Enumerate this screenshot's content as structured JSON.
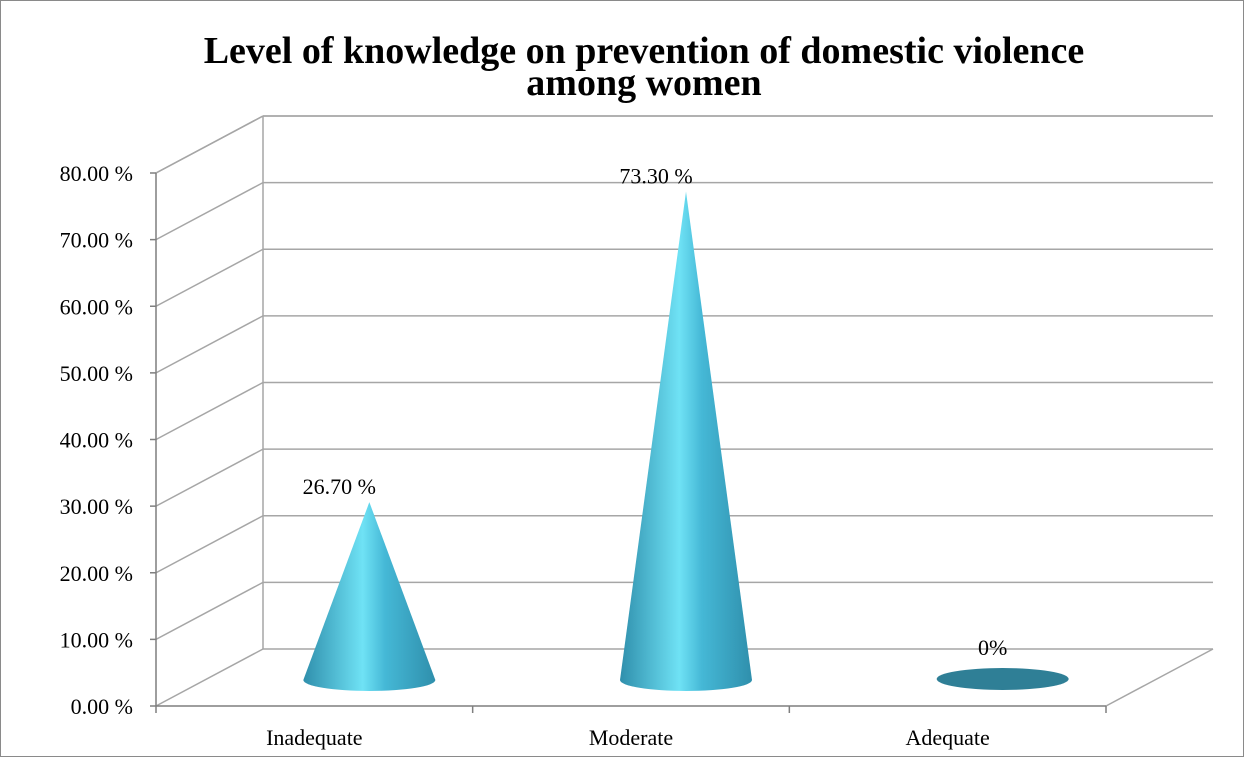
{
  "chart_data": {
    "type": "bar",
    "shape": "cone",
    "title_lines": [
      "Level of knowledge on prevention of domestic violence",
      "among women"
    ],
    "categories": [
      "Inadequate",
      "Moderate",
      "Adequate"
    ],
    "values": [
      26.7,
      73.3,
      0
    ],
    "data_labels": [
      "26.70 %",
      "73.30 %",
      "0%"
    ],
    "y_ticks": [
      "0.00 %",
      "10.00 %",
      "20.00 %",
      "30.00 %",
      "40.00 %",
      "50.00 %",
      "60.00 %",
      "70.00 %",
      "80.00 %"
    ],
    "ylim": [
      0,
      80
    ],
    "grid": true,
    "legend": "none",
    "colors": {
      "cone_dark": "#2f8fac",
      "cone_light": "#6fe2f5",
      "cone_mid": "#45b8d6",
      "zero_fill": "#2f7f96",
      "grid": "#a6a6a6",
      "axis": "#7f7f7f"
    }
  }
}
